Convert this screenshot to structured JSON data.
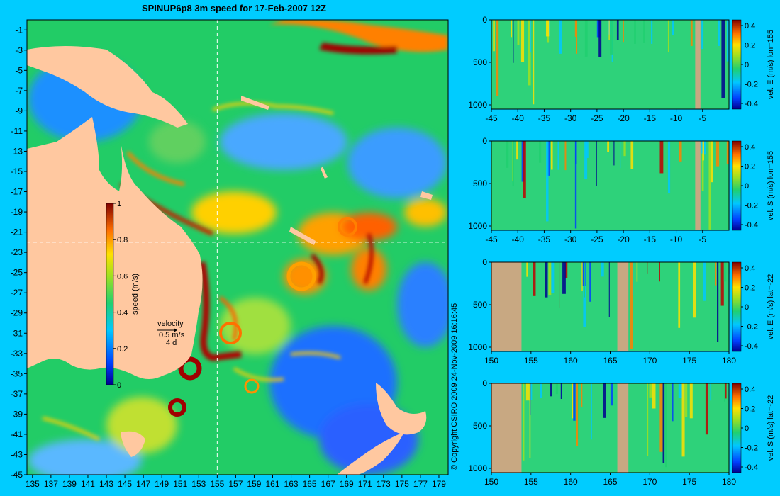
{
  "map": {
    "title": "SPINUP6p8 3m speed for 17-Feb-2007 12Z",
    "type": "heatmap",
    "lon_ticks": [
      "135",
      "137",
      "139",
      "141",
      "143",
      "145",
      "147",
      "149",
      "151",
      "153",
      "155",
      "157",
      "159",
      "161",
      "163",
      "165",
      "167",
      "169",
      "171",
      "173",
      "175",
      "177",
      "179"
    ],
    "lat_ticks": [
      "-1",
      "-3",
      "-5",
      "-7",
      "-9",
      "-11",
      "-13",
      "-15",
      "-17",
      "-19",
      "-21",
      "-23",
      "-25",
      "-27",
      "-29",
      "-31",
      "-33",
      "-35",
      "-37",
      "-39",
      "-41",
      "-43",
      "-45"
    ],
    "xlim": [
      134.4,
      180
    ],
    "ylim": [
      -45,
      0
    ],
    "section_lon": 155,
    "section_lat": -22,
    "colorbar": {
      "label": "speed (m/s)",
      "ticks": [
        "1",
        "0.8",
        "0.6",
        "0.4",
        "0.2",
        "0"
      ],
      "range": [
        0,
        1
      ]
    },
    "velocity_key": {
      "title": "velocity",
      "line1": "0.5 m/s",
      "line2": "4 d"
    },
    "copyright": "© Copyright CSIRO 2009   24-Nov-2009 16:16:45",
    "colors": {
      "land": "#ffc8a0",
      "frame": "#00ccff"
    }
  },
  "sections": [
    {
      "id": "vel-e-lon155",
      "cbar_label": "vel. E (m/s) lon=155",
      "x_ticks": [
        "-45",
        "-40",
        "-35",
        "-30",
        "-25",
        "-20",
        "-15",
        "-10",
        "-5"
      ],
      "y_ticks": [
        "0",
        "500",
        "1000"
      ],
      "cbar_ticks": [
        "0.4",
        "0.2",
        "0",
        "-0.2",
        "-0.4"
      ],
      "xlim": [
        -45,
        0
      ],
      "ylim": [
        0,
        1050
      ],
      "land": [
        [
          -6.4,
          -5.4
        ]
      ]
    },
    {
      "id": "vel-s-lon155",
      "cbar_label": "vel. S (m/s) lon=155",
      "x_ticks": [
        "-45",
        "-40",
        "-35",
        "-30",
        "-25",
        "-20",
        "-15",
        "-10",
        "-5"
      ],
      "y_ticks": [
        "0",
        "500",
        "1000"
      ],
      "cbar_ticks": [
        "0.4",
        "0.2",
        "0",
        "-0.2",
        "-0.4"
      ],
      "xlim": [
        -45,
        0
      ],
      "ylim": [
        0,
        1050
      ],
      "land": [
        [
          -6.4,
          -5.4
        ]
      ]
    },
    {
      "id": "vel-e-lat-22",
      "cbar_label": "vel. E (m/s) lat=-22",
      "x_ticks": [
        "150",
        "155",
        "160",
        "165",
        "170",
        "175",
        "180"
      ],
      "y_ticks": [
        "0",
        "500",
        "1000"
      ],
      "cbar_ticks": [
        "0.4",
        "0.2",
        "0",
        "-0.2",
        "-0.4"
      ],
      "xlim": [
        150,
        180
      ],
      "ylim": [
        0,
        1050
      ],
      "land": [
        [
          150,
          153.8
        ],
        [
          165.9,
          167.3
        ]
      ]
    },
    {
      "id": "vel-s-lat-22",
      "cbar_label": "vel. S (m/s) lat=-22",
      "x_ticks": [
        "150",
        "155",
        "160",
        "165",
        "170",
        "175",
        "180"
      ],
      "y_ticks": [
        "0",
        "500",
        "1000"
      ],
      "cbar_ticks": [
        "0.4",
        "0.2",
        "0",
        "-0.2",
        "-0.4"
      ],
      "xlim": [
        150,
        180
      ],
      "ylim": [
        0,
        1050
      ],
      "land": [
        [
          150,
          153.8
        ],
        [
          165.9,
          167.3
        ]
      ]
    }
  ]
}
